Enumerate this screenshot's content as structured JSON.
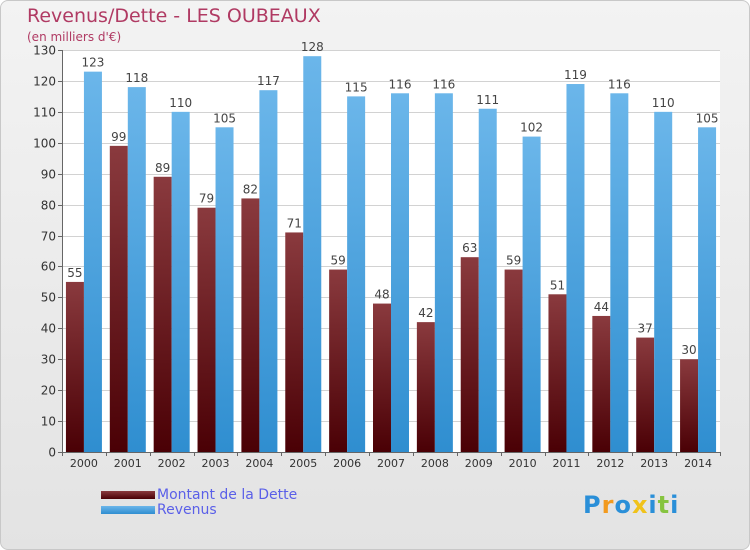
{
  "title": "Revenus/Dette - LES OUBEAUX",
  "subtitle": "(en milliers d'€)",
  "chart_data": {
    "type": "bar",
    "categories": [
      "2000",
      "2001",
      "2002",
      "2003",
      "2004",
      "2005",
      "2006",
      "2007",
      "2008",
      "2009",
      "2010",
      "2011",
      "2012",
      "2013",
      "2014"
    ],
    "series": [
      {
        "name": "Montant de la Dette",
        "values": [
          55,
          99,
          89,
          79,
          82,
          71,
          59,
          48,
          42,
          63,
          59,
          51,
          44,
          37,
          30
        ]
      },
      {
        "name": "Revenus",
        "values": [
          123,
          118,
          110,
          105,
          117,
          128,
          115,
          116,
          116,
          111,
          102,
          119,
          116,
          110,
          105
        ]
      }
    ],
    "ylim": [
      0,
      130
    ],
    "yticks": [
      0,
      10,
      20,
      30,
      40,
      50,
      60,
      70,
      80,
      90,
      100,
      110,
      120,
      130
    ],
    "grid": true,
    "legend_position": "bottom-left"
  },
  "legend": {
    "debt_label": "Montant de la Dette",
    "revenue_label": "Revenus"
  },
  "logo": {
    "letters": [
      "P",
      "r",
      "o",
      "x",
      "i",
      "t",
      "i"
    ],
    "colors": [
      "#2a8fd8",
      "#f29a1e",
      "#2a8fd8",
      "#f0c21a",
      "#2a8fd8",
      "#86c440",
      "#2a8fd8"
    ]
  },
  "colors": {
    "debt_top": "#8a3a3e",
    "debt_bottom": "#4a0005",
    "rev_top": "#6bb6ea",
    "rev_bottom": "#2f8ed0",
    "title": "#b03a63",
    "legend_text": "#5a5fe8",
    "label_text": "#444444"
  }
}
